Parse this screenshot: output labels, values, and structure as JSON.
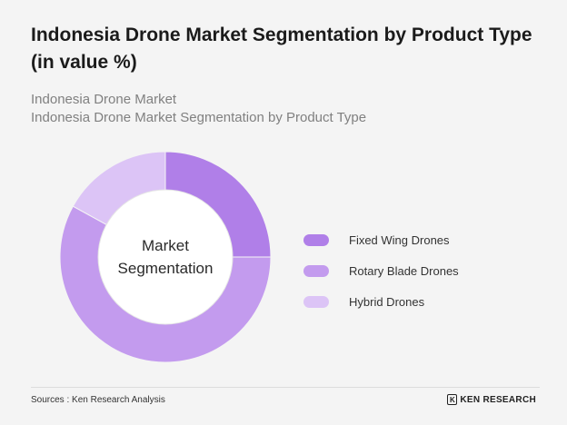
{
  "title": "Indonesia Drone Market Segmentation by Product Type (in value %)",
  "subtitle_lines": [
    "Indonesia Drone Market",
    "Indonesia Drone Market Segmentation by Product Type"
  ],
  "footer": {
    "source": "Sources : Ken Research Analysis",
    "brand": "KEN RESEARCH",
    "brand_mark": "K"
  },
  "chart_data": {
    "type": "pie",
    "donut": true,
    "center_label_lines": [
      "Market",
      "Segmentation"
    ],
    "categories": [
      "Fixed Wing Drones",
      "Rotary Blade Drones",
      "Hybrid Drones"
    ],
    "values": [
      25,
      58,
      17
    ],
    "unit": "%",
    "colors": [
      "#b07fe8",
      "#c39bee",
      "#dcc4f6"
    ],
    "legend_position": "right"
  }
}
